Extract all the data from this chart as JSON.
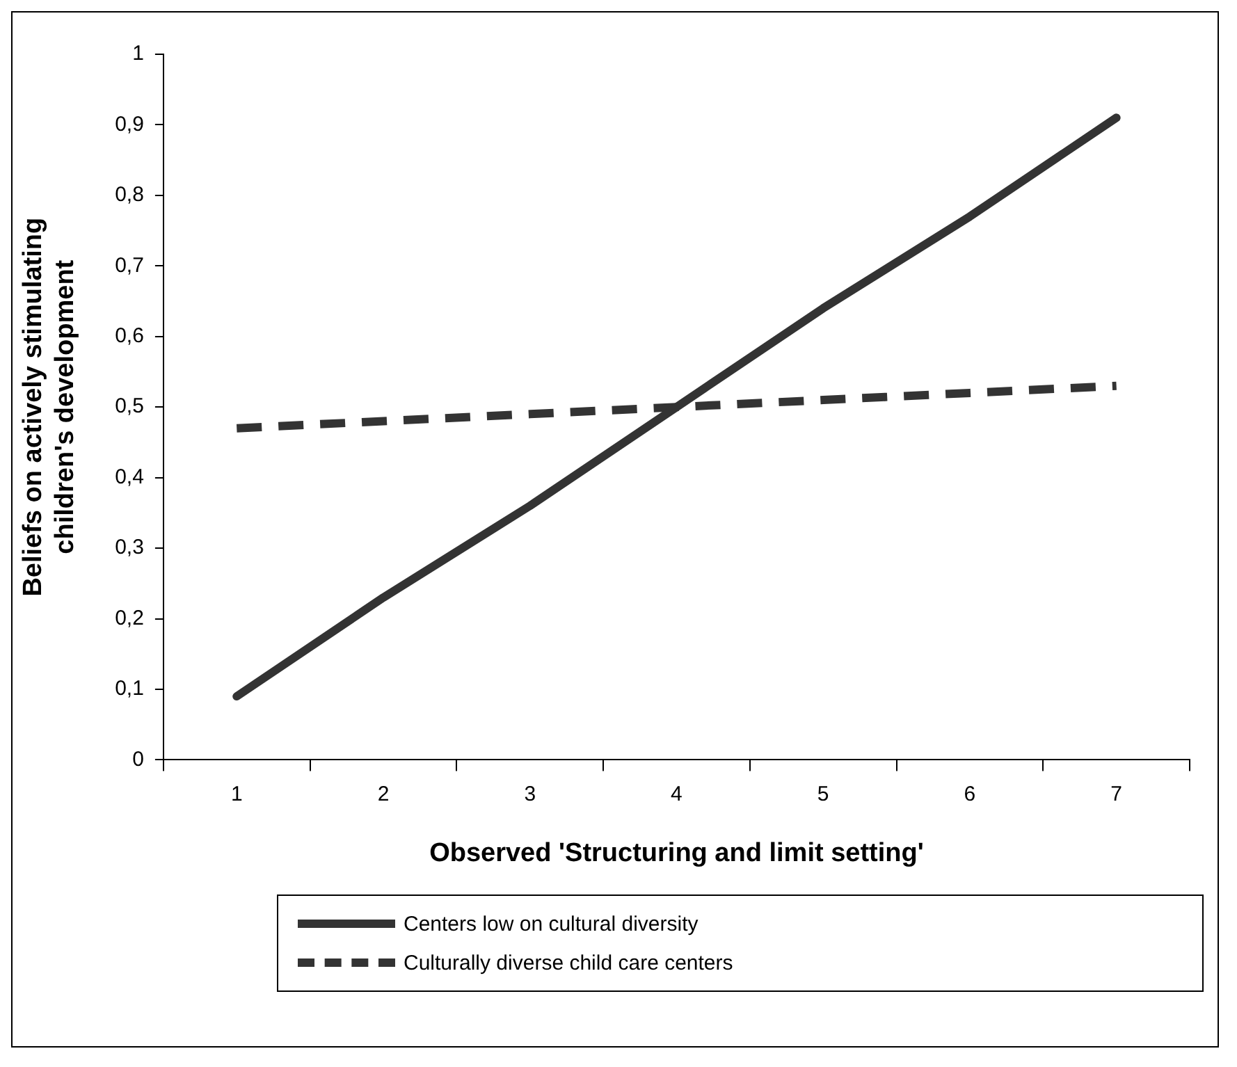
{
  "chart_data": {
    "type": "line",
    "xlabel": "Observed 'Structuring and limit setting'",
    "ylabel": "Beliefs on actively stimulating children's development",
    "categories": [
      "1",
      "2",
      "3",
      "4",
      "5",
      "6",
      "7"
    ],
    "series": [
      {
        "name": "Centers low on cultural diversity",
        "color": "#333333",
        "line_style": "solid",
        "values": [
          0.09,
          0.23,
          0.36,
          0.5,
          0.64,
          0.77,
          0.91
        ]
      },
      {
        "name": "Culturally diverse child care centers",
        "color": "#333333",
        "line_style": "dashed",
        "values": [
          0.47,
          0.48,
          0.49,
          0.5,
          0.51,
          0.52,
          0.53
        ]
      }
    ],
    "ylim": [
      0,
      1
    ],
    "yticks": [
      0,
      {
        "value": 0.1,
        "label": "0,1"
      },
      {
        "value": 0.2,
        "label": "0,2"
      },
      {
        "value": 0.3,
        "label": "0,3"
      },
      {
        "value": 0.4,
        "label": "0,4"
      },
      {
        "value": 0.5,
        "label": "0,5"
      },
      {
        "value": 0.6,
        "label": "0,6"
      },
      {
        "value": 0.7,
        "label": "0,7"
      },
      {
        "value": 0.8,
        "label": "0,8"
      },
      {
        "value": 0.9,
        "label": "0,9"
      },
      1
    ],
    "grid": false,
    "legend": "bottom",
    "marker": "none"
  }
}
